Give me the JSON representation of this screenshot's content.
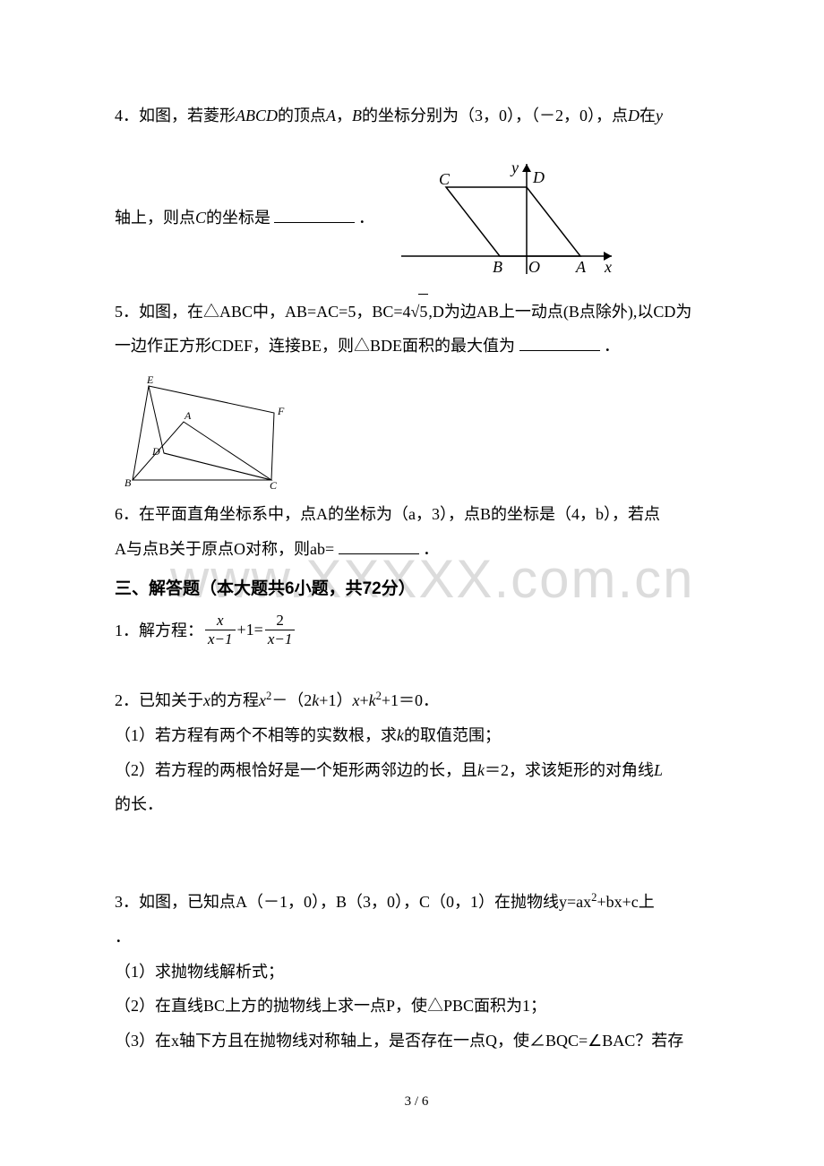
{
  "watermark_text": "www.XXXXX.com.cn",
  "q4": {
    "line1": "4．如图，若菱形<i>ABCD</i>的顶点<i>A</i>，<i>B</i>的坐标分别为（3，0），（－2，0），点<i>D</i>在<i>y</i>",
    "line2_prefix": "轴上，则点<i>C</i>的坐标是",
    "line2_suffix": "．",
    "svg": {
      "bg": "#ffffff",
      "stroke": "#000000",
      "labels": {
        "C": "C",
        "D": "D",
        "B": "B",
        "O": "O",
        "A": "A",
        "x": "x",
        "y": "y"
      }
    }
  },
  "q5": {
    "line1_p1": "5．如图，在△ABC中，AB=AC=5，BC=4",
    "line1_sqrt": "5",
    "line1_p2": ",D为边AB上一动点(B点除外),以CD为",
    "line2_prefix": "一边作正方形CDEF，连接BE，则△BDE面积的最大值为",
    "line2_suffix": "．",
    "svg": {
      "stroke": "#000000",
      "labels": {
        "E": "E",
        "F": "F",
        "A": "A",
        "D": "D",
        "B": "B",
        "C": "C"
      }
    }
  },
  "q6": {
    "line1": "6．在平面直角坐标系中，点A的坐标为（a，3），点B的坐标是（4，b），若点",
    "line2_prefix": "A与点B关于原点O对称，则ab=",
    "line2_suffix": "．"
  },
  "section3_title": "三、解答题（本大题共6小题，共72分）",
  "p1": {
    "prefix": "1．解方程：",
    "frac1_num": "x",
    "frac1_den": "x−1",
    "plus1": "+1=",
    "frac2_num": "2",
    "frac2_den": "x−1"
  },
  "p2": {
    "line1": "2．已知关于<i>x</i>的方程<i>x</i><sup>2</sup>－（2<i>k</i>+1）<i>x</i>+<i>k</i><sup>2</sup>+1＝0．",
    "line2": "（1）若方程有两个不相等的实数根，求<i>k</i>的取值范围；",
    "line3": "（2）若方程的两根恰好是一个矩形两邻边的长，且<i>k</i>＝2，求该矩形的对角线<i>L</i>",
    "line4": "的长．"
  },
  "p3": {
    "line1": "3．如图，已知点A（－1，0），B（3，0），C（0，1）在抛物线y=ax<sup>2</sup>+bx+c上",
    "line1b": "．",
    "line2": "（1）求抛物线解析式；",
    "line3": "（2）在直线BC上方的抛物线上求一点P，使△PBC面积为1；",
    "line4": "（3）在x轴下方且在抛物线对称轴上，是否存在一点Q，使∠BQC=∠BAC？若存"
  },
  "footer": "3 / 6"
}
